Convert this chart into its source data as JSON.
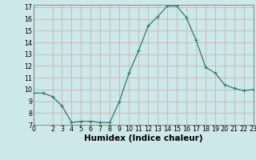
{
  "x": [
    0,
    1,
    2,
    3,
    4,
    5,
    6,
    7,
    8,
    9,
    10,
    11,
    12,
    13,
    14,
    15,
    16,
    17,
    18,
    19,
    20,
    21,
    22,
    23
  ],
  "y": [
    9.7,
    9.7,
    9.4,
    8.6,
    7.2,
    7.3,
    7.3,
    7.2,
    7.2,
    9.0,
    11.4,
    13.3,
    15.4,
    16.2,
    17.1,
    17.1,
    16.1,
    14.2,
    11.9,
    11.4,
    10.4,
    10.1,
    9.9,
    10.0
  ],
  "xlim": [
    0,
    23
  ],
  "ylim": [
    7,
    17
  ],
  "yticks": [
    7,
    8,
    9,
    10,
    11,
    12,
    13,
    14,
    15,
    16,
    17
  ],
  "xticks": [
    0,
    2,
    3,
    4,
    5,
    6,
    7,
    8,
    9,
    10,
    11,
    12,
    13,
    14,
    15,
    16,
    17,
    18,
    19,
    20,
    21,
    22,
    23
  ],
  "xlabel": "Humidex (Indice chaleur)",
  "line_color": "#2e7d6e",
  "marker": "+",
  "bg_color": "#cce8e8",
  "grid_color": "#c8a8a8",
  "tick_label_fontsize": 5.8,
  "xlabel_fontsize": 7.5
}
